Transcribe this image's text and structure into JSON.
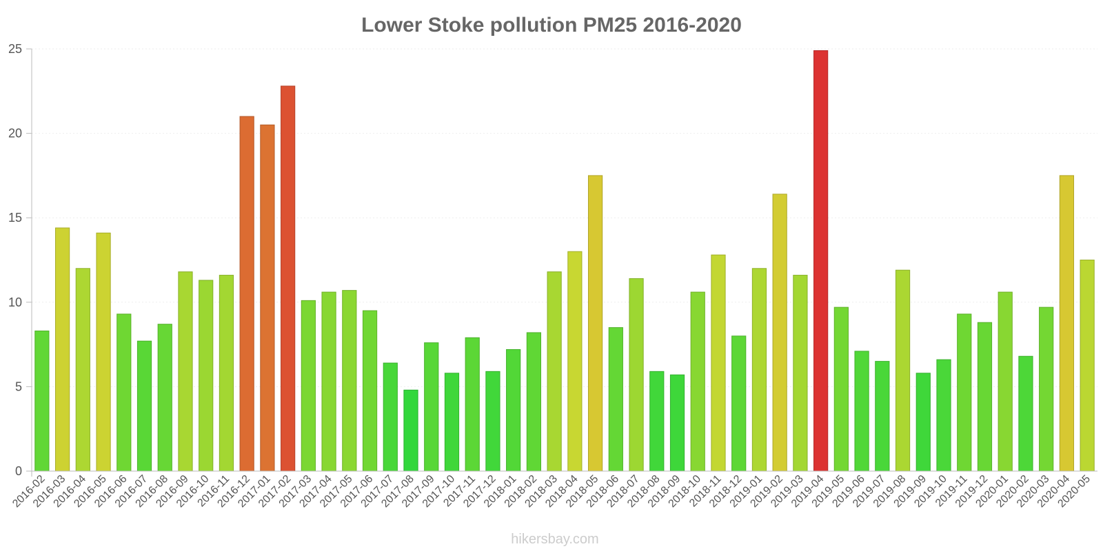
{
  "chart_data": {
    "type": "bar",
    "title": "Lower Stoke pollution PM25 2016-2020",
    "xlabel": "",
    "ylabel": "",
    "ylim": [
      0,
      25
    ],
    "yticks": [
      0,
      5,
      10,
      15,
      20,
      25
    ],
    "grid": true,
    "categories": [
      "2016-02",
      "2016-03",
      "2016-04",
      "2016-05",
      "2016-06",
      "2016-07",
      "2016-08",
      "2016-09",
      "2016-10",
      "2016-11",
      "2016-12",
      "2017-01",
      "2017-02",
      "2017-03",
      "2017-04",
      "2017-05",
      "2017-06",
      "2017-07",
      "2017-08",
      "2017-09",
      "2017-10",
      "2017-11",
      "2017-12",
      "2018-01",
      "2018-02",
      "2018-03",
      "2018-04",
      "2018-05",
      "2018-06",
      "2018-07",
      "2018-08",
      "2018-09",
      "2018-10",
      "2018-11",
      "2018-12",
      "2019-01",
      "2019-02",
      "2019-03",
      "2019-04",
      "2019-05",
      "2019-06",
      "2019-07",
      "2019-08",
      "2019-09",
      "2019-10",
      "2019-11",
      "2019-12",
      "2020-01",
      "2020-02",
      "2020-03",
      "2020-04",
      "2020-05"
    ],
    "values": [
      8.3,
      14.4,
      12.0,
      14.1,
      9.3,
      7.7,
      8.7,
      11.8,
      11.3,
      11.6,
      21.0,
      20.5,
      22.8,
      10.1,
      10.6,
      10.7,
      9.5,
      6.4,
      4.8,
      7.6,
      5.8,
      7.9,
      5.9,
      7.2,
      8.2,
      11.8,
      13.0,
      17.5,
      8.5,
      11.4,
      5.9,
      5.7,
      10.6,
      12.8,
      8.0,
      12.0,
      16.4,
      11.6,
      24.9,
      9.7,
      7.1,
      6.5,
      11.9,
      5.8,
      6.6,
      9.3,
      8.8,
      10.6,
      6.8,
      9.7,
      17.5,
      12.5
    ]
  },
  "footer": {
    "credit": "hikersbay.com"
  },
  "colors": {
    "title": "#666666",
    "axis": "#bbbbbb",
    "grid": "#eeeeee",
    "tick_text": "#555555",
    "credit": "#cccccc"
  }
}
